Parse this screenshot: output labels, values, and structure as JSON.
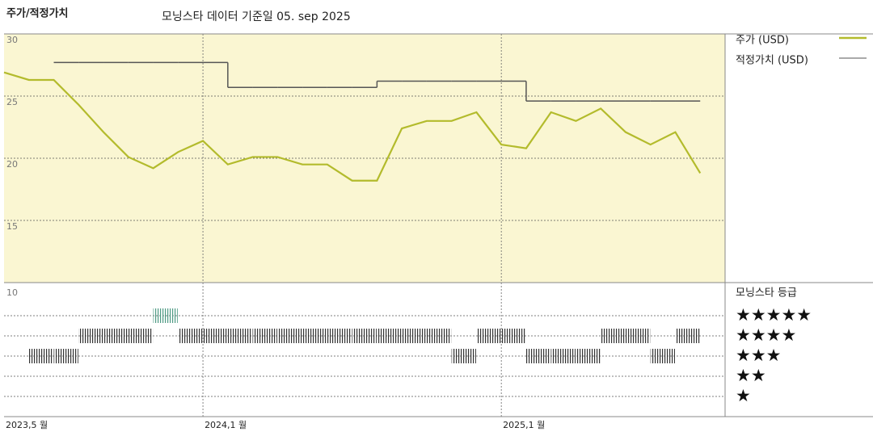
{
  "chart_data": [
    {
      "type": "line",
      "title": "주가/적정가치",
      "subtitle": "모닝스타 데이터 기준일 05. sep 2025",
      "x": [
        "2023-05",
        "2023-06",
        "2023-07",
        "2023-08",
        "2023-09",
        "2023-10",
        "2023-11",
        "2023-12",
        "2024-01",
        "2024-02",
        "2024-03",
        "2024-04",
        "2024-05",
        "2024-06",
        "2024-07",
        "2024-08",
        "2024-09",
        "2024-10",
        "2024-11",
        "2024-12",
        "2025-01",
        "2025-02",
        "2025-03",
        "2025-04",
        "2025-05",
        "2025-06",
        "2025-07",
        "2025-08",
        "2025-09"
      ],
      "series": [
        {
          "name": "주가 (USD)",
          "color": "#b3bb2c",
          "values": [
            26.9,
            26.3,
            26.3,
            24.3,
            22.1,
            20.1,
            19.2,
            20.5,
            21.4,
            19.5,
            20.1,
            20.1,
            19.5,
            19.5,
            18.2,
            18.2,
            22.4,
            23.0,
            23.0,
            23.7,
            21.1,
            20.8,
            23.7,
            23.0,
            24.0,
            22.1,
            21.1,
            22.1,
            18.8
          ]
        },
        {
          "name": "적정가치 (USD)",
          "color": "#555555",
          "step": true,
          "values": [
            null,
            null,
            27.7,
            27.7,
            27.7,
            27.7,
            27.7,
            27.7,
            27.7,
            25.7,
            25.7,
            25.7,
            25.7,
            25.7,
            25.7,
            26.2,
            26.2,
            26.2,
            26.2,
            26.2,
            26.2,
            24.6,
            24.6,
            24.6,
            24.6,
            24.6,
            24.6,
            24.6,
            24.6
          ]
        }
      ],
      "xlim": [
        "2023-05",
        "2025-10"
      ],
      "xticks": [
        {
          "value": "2023-05",
          "label": "2023,5 월"
        },
        {
          "value": "2024-01",
          "label": "2024,1 월"
        },
        {
          "value": "2025-01",
          "label": "2025,1 월"
        }
      ],
      "ylim": [
        10,
        30
      ],
      "yticks": [
        15,
        20,
        25,
        30
      ],
      "grid": true,
      "background": "#faf6d2"
    },
    {
      "type": "rating",
      "title": "모닝스타 등급",
      "axis_label": "10",
      "values": [
        null,
        3,
        3,
        4,
        4,
        4,
        5,
        4,
        4,
        4,
        4,
        4,
        4,
        4,
        4,
        4,
        4,
        4,
        3,
        4,
        4,
        3,
        3,
        3,
        4,
        4,
        3,
        4,
        null
      ],
      "rating_labels": [
        "★★★★★",
        "★★★★",
        "★★★",
        "★★",
        "★"
      ],
      "ylim": [
        0,
        6
      ],
      "color": "#333333",
      "top_color": "#4e9a84"
    }
  ]
}
